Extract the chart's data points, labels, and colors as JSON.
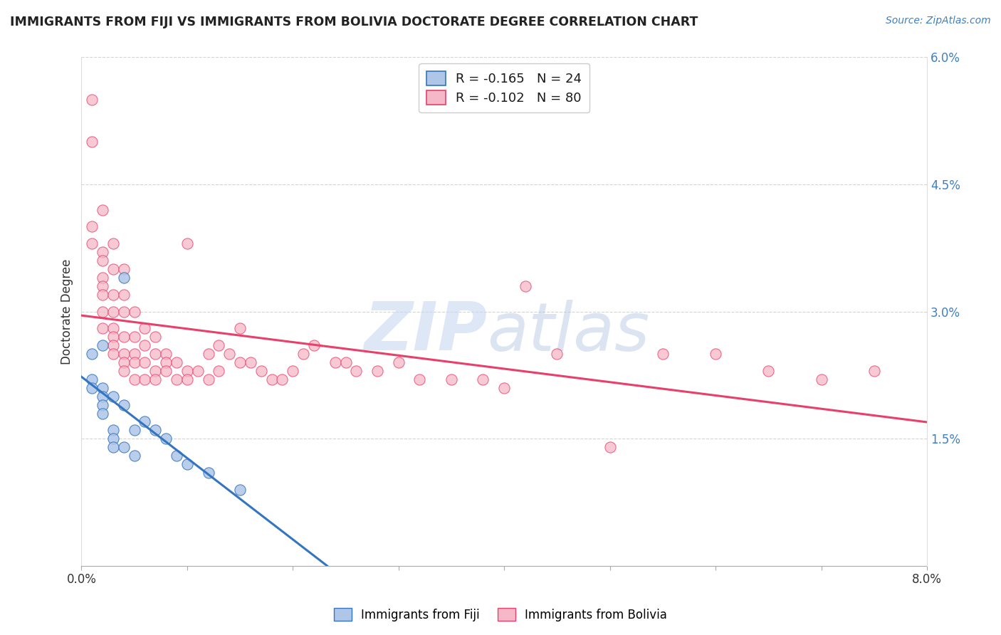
{
  "title": "IMMIGRANTS FROM FIJI VS IMMIGRANTS FROM BOLIVIA DOCTORATE DEGREE CORRELATION CHART",
  "source_text": "Source: ZipAtlas.com",
  "ylabel": "Doctorate Degree",
  "xlim": [
    0.0,
    0.08
  ],
  "ylim": [
    0.0,
    0.06
  ],
  "xticks": [
    0.0,
    0.08
  ],
  "xticklabels": [
    "0.0%",
    "8.0%"
  ],
  "yticks_right": [
    0.015,
    0.03,
    0.045,
    0.06
  ],
  "yticklabels_right": [
    "1.5%",
    "3.0%",
    "4.5%",
    "6.0%"
  ],
  "fiji_R": -0.165,
  "fiji_N": 24,
  "bolivia_R": -0.102,
  "bolivia_N": 80,
  "fiji_color": "#aec6e8",
  "bolivia_color": "#f5b8c8",
  "fiji_line_color": "#3375c0",
  "bolivia_line_color": "#e8406a",
  "fiji_scatter": [
    [
      0.001,
      0.025
    ],
    [
      0.001,
      0.022
    ],
    [
      0.001,
      0.021
    ],
    [
      0.002,
      0.026
    ],
    [
      0.002,
      0.021
    ],
    [
      0.002,
      0.02
    ],
    [
      0.002,
      0.019
    ],
    [
      0.002,
      0.018
    ],
    [
      0.003,
      0.02
    ],
    [
      0.003,
      0.016
    ],
    [
      0.003,
      0.015
    ],
    [
      0.003,
      0.014
    ],
    [
      0.004,
      0.034
    ],
    [
      0.004,
      0.019
    ],
    [
      0.004,
      0.014
    ],
    [
      0.005,
      0.016
    ],
    [
      0.005,
      0.013
    ],
    [
      0.006,
      0.017
    ],
    [
      0.007,
      0.016
    ],
    [
      0.008,
      0.015
    ],
    [
      0.009,
      0.013
    ],
    [
      0.01,
      0.012
    ],
    [
      0.012,
      0.011
    ],
    [
      0.015,
      0.009
    ]
  ],
  "bolivia_scatter": [
    [
      0.001,
      0.055
    ],
    [
      0.001,
      0.05
    ],
    [
      0.001,
      0.04
    ],
    [
      0.001,
      0.038
    ],
    [
      0.002,
      0.042
    ],
    [
      0.002,
      0.037
    ],
    [
      0.002,
      0.036
    ],
    [
      0.002,
      0.034
    ],
    [
      0.002,
      0.033
    ],
    [
      0.002,
      0.032
    ],
    [
      0.002,
      0.03
    ],
    [
      0.002,
      0.028
    ],
    [
      0.003,
      0.038
    ],
    [
      0.003,
      0.035
    ],
    [
      0.003,
      0.032
    ],
    [
      0.003,
      0.03
    ],
    [
      0.003,
      0.028
    ],
    [
      0.003,
      0.027
    ],
    [
      0.003,
      0.026
    ],
    [
      0.003,
      0.025
    ],
    [
      0.004,
      0.035
    ],
    [
      0.004,
      0.032
    ],
    [
      0.004,
      0.03
    ],
    [
      0.004,
      0.027
    ],
    [
      0.004,
      0.025
    ],
    [
      0.004,
      0.024
    ],
    [
      0.004,
      0.023
    ],
    [
      0.005,
      0.03
    ],
    [
      0.005,
      0.027
    ],
    [
      0.005,
      0.025
    ],
    [
      0.005,
      0.024
    ],
    [
      0.005,
      0.022
    ],
    [
      0.006,
      0.028
    ],
    [
      0.006,
      0.026
    ],
    [
      0.006,
      0.024
    ],
    [
      0.006,
      0.022
    ],
    [
      0.007,
      0.027
    ],
    [
      0.007,
      0.025
    ],
    [
      0.007,
      0.023
    ],
    [
      0.007,
      0.022
    ],
    [
      0.008,
      0.025
    ],
    [
      0.008,
      0.024
    ],
    [
      0.008,
      0.023
    ],
    [
      0.009,
      0.024
    ],
    [
      0.009,
      0.022
    ],
    [
      0.01,
      0.038
    ],
    [
      0.01,
      0.023
    ],
    [
      0.01,
      0.022
    ],
    [
      0.011,
      0.023
    ],
    [
      0.012,
      0.025
    ],
    [
      0.012,
      0.022
    ],
    [
      0.013,
      0.026
    ],
    [
      0.013,
      0.023
    ],
    [
      0.014,
      0.025
    ],
    [
      0.015,
      0.028
    ],
    [
      0.015,
      0.024
    ],
    [
      0.016,
      0.024
    ],
    [
      0.017,
      0.023
    ],
    [
      0.018,
      0.022
    ],
    [
      0.019,
      0.022
    ],
    [
      0.02,
      0.023
    ],
    [
      0.021,
      0.025
    ],
    [
      0.022,
      0.026
    ],
    [
      0.024,
      0.024
    ],
    [
      0.025,
      0.024
    ],
    [
      0.026,
      0.023
    ],
    [
      0.028,
      0.023
    ],
    [
      0.03,
      0.024
    ],
    [
      0.032,
      0.022
    ],
    [
      0.035,
      0.022
    ],
    [
      0.038,
      0.022
    ],
    [
      0.04,
      0.021
    ],
    [
      0.042,
      0.033
    ],
    [
      0.045,
      0.025
    ],
    [
      0.05,
      0.014
    ],
    [
      0.055,
      0.025
    ],
    [
      0.06,
      0.025
    ],
    [
      0.065,
      0.023
    ],
    [
      0.07,
      0.022
    ],
    [
      0.075,
      0.023
    ]
  ],
  "watermark_zip": "ZIP",
  "watermark_atlas": "atlas",
  "background_color": "#ffffff",
  "grid_color": "#d0d0d0"
}
